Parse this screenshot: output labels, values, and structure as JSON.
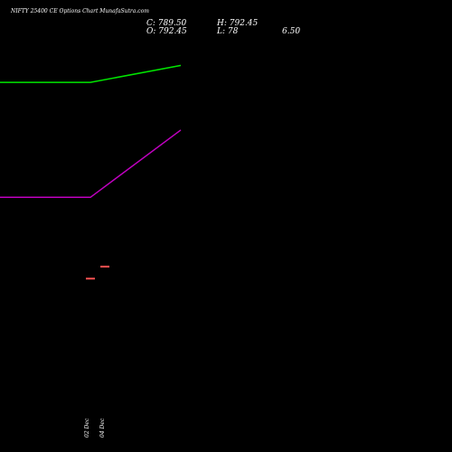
{
  "chart_data": {
    "type": "line",
    "title": "NIFTY 25400 CE Options Chart MunafaSutra.com",
    "stats": {
      "close": "C: 789.50",
      "open": "O: 792.45",
      "high": "H: 792.45",
      "low": "L: 78",
      "extra": "6.50"
    },
    "x_labels": [
      "02 Dec",
      "04 Dec"
    ],
    "series": [
      {
        "color": "#00e600",
        "values": [
          32.75,
          32.75,
          36.4
        ]
      },
      {
        "color": "#c000c0",
        "values": [
          8,
          8,
          22.5
        ]
      }
    ],
    "candles": [
      {
        "color": "#ff5050",
        "value": -9.5
      },
      {
        "color": "#ff5050",
        "value": -6.9
      }
    ],
    "ylim": [
      -40,
      42.5
    ]
  }
}
